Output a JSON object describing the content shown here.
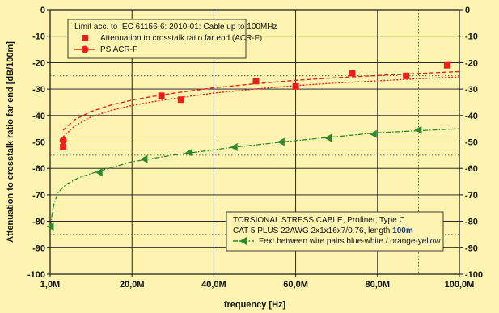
{
  "chart_data": {
    "type": "line",
    "xlabel": "frequency [Hz]",
    "ylabel": "Attenuation to crosstalk ratio far end [dB/100m]",
    "xlim": [
      0,
      100
    ],
    "ylim": [
      -100,
      0
    ],
    "x_ticks": [
      {
        "value": 1,
        "label": "1,0M"
      },
      {
        "value": 20,
        "label": "20,0M"
      },
      {
        "value": 40,
        "label": "40,0M"
      },
      {
        "value": 60,
        "label": "60,0M"
      },
      {
        "value": 80,
        "label": "80,0M"
      },
      {
        "value": 100,
        "label": "100,0M"
      }
    ],
    "y_ticks": [
      0,
      -10,
      -20,
      -30,
      -40,
      -50,
      -60,
      -70,
      -80,
      -90,
      -100
    ],
    "y_ticks_right": [
      "0",
      "-10",
      "-20",
      "-30",
      "-40",
      "-50",
      "-60",
      "-70",
      "-80",
      "-90",
      "-100"
    ],
    "grid": true,
    "limit_note": "Limit acc. to IEC 61156-6: 2010-01: Cable up to 100MHz",
    "info_box": {
      "line1": "TORSIONAL STRESS CABLE, Profinet, Type C",
      "line2_prefix": "CAT 5 PLUS 22AWG 2x1x16x7/0.76, length ",
      "line2_highlight": "100m"
    },
    "series": [
      {
        "name": "Attenuation to crosstalk ratio far end (ACR-F)",
        "color": "#e8201a",
        "marker": "square",
        "line": "dashed",
        "x": [
          3.2,
          27.2,
          32,
          50.3,
          60,
          73.8,
          87,
          97
        ],
        "y": [
          -52,
          -32.5,
          -34,
          -27,
          -29,
          -24,
          -25,
          -21
        ]
      },
      {
        "name": "PS ACR-F",
        "color": "#e8201a",
        "marker": "circle",
        "line": "solid",
        "x": [
          3.2
        ],
        "y": [
          -49.5
        ]
      },
      {
        "name": "Fext between wire pairs blue-white / orange-yellow",
        "color": "#2c8a2c",
        "marker": "triangle-left",
        "line": "dashdot",
        "x": [
          0.1,
          12,
          23,
          34,
          45,
          56.5,
          68,
          79,
          90
        ],
        "y": [
          -82,
          -61.5,
          -56.5,
          -54,
          -52,
          -50,
          -48.5,
          -47,
          -45.5
        ]
      }
    ],
    "limit_curves": [
      {
        "name": "ACR-F limit",
        "color": "#e8201a",
        "style": "dashed",
        "x": [
          3.2,
          6,
          10,
          15,
          20,
          25,
          30,
          40,
          50,
          60,
          70,
          80,
          90,
          100
        ],
        "y": [
          -45.5,
          -41.6,
          -38.5,
          -36,
          -34.2,
          -32.8,
          -31.6,
          -29.5,
          -28,
          -26.7,
          -25.7,
          -24.9,
          -24.1,
          -23.4
        ]
      },
      {
        "name": "PS ACR-F limit",
        "color": "#e8201a",
        "style": "solid-dotted",
        "x": [
          3.2,
          6,
          10,
          15,
          20,
          25,
          30,
          40,
          50,
          60,
          70,
          80,
          90,
          100
        ],
        "y": [
          -48,
          -43.9,
          -40.5,
          -38,
          -36.2,
          -34.8,
          -33.6,
          -31.5,
          -30,
          -28.7,
          -27.7,
          -26.9,
          -26.1,
          -25.4
        ]
      },
      {
        "name": "Fext trend",
        "color": "#2c8a2c",
        "style": "dashdot",
        "x": [
          0.1,
          0.5,
          1,
          2,
          4,
          7,
          12,
          20,
          30,
          45,
          60,
          80,
          100
        ],
        "y": [
          -82,
          -77,
          -73,
          -69,
          -66,
          -63.5,
          -61,
          -57.5,
          -55,
          -52,
          -49.5,
          -46.5,
          -45
        ]
      }
    ],
    "ref_lines_y": [
      -25,
      -55,
      -85
    ],
    "ref_line_x": 90
  }
}
